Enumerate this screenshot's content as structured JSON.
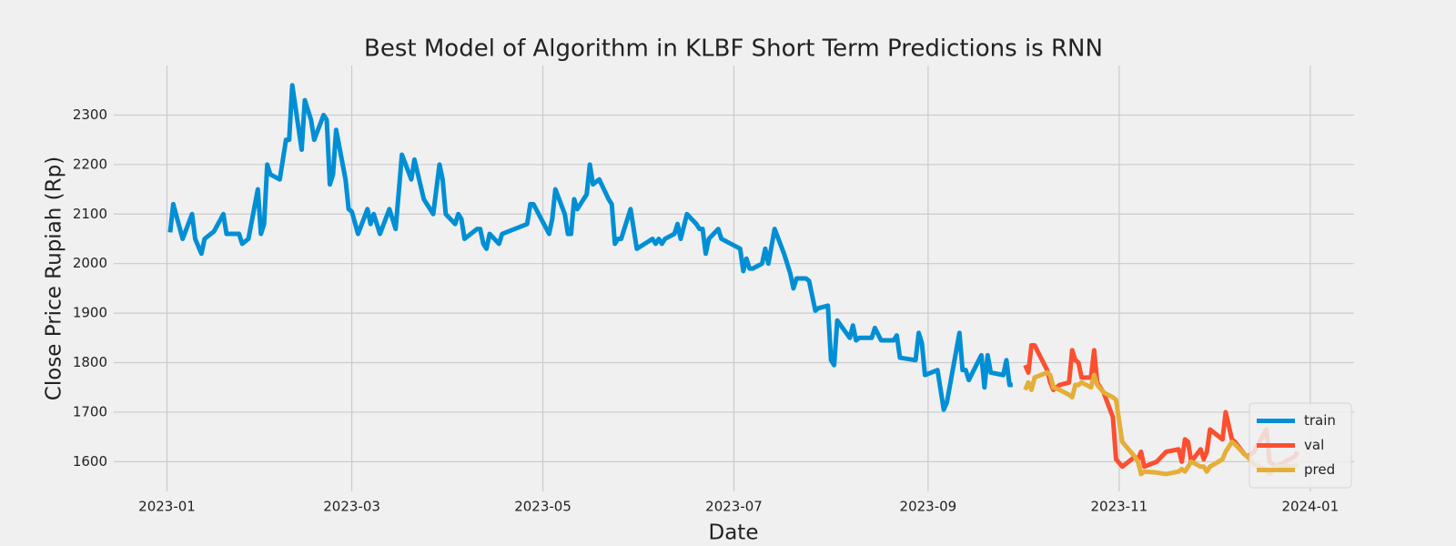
{
  "chart_data": {
    "type": "line",
    "title": "Best Model of Algorithm in KLBF Short Term Predictions is RNN",
    "x_label": "Date",
    "y_label": "Close Price Rupiah (Rp)",
    "xlim": [
      "2022-12-15",
      "2024-01-15"
    ],
    "xticks": [
      {
        "value": "2023-01-01",
        "label": "2023-01"
      },
      {
        "value": "2023-03-01",
        "label": "2023-03"
      },
      {
        "value": "2023-05-01",
        "label": "2023-05"
      },
      {
        "value": "2023-07-01",
        "label": "2023-07"
      },
      {
        "value": "2023-09-01",
        "label": "2023-09"
      },
      {
        "value": "2023-11-01",
        "label": "2023-11"
      },
      {
        "value": "2024-01-01",
        "label": "2024-01"
      }
    ],
    "ylim": [
      1540,
      2400
    ],
    "yticks": [
      1600,
      1700,
      1800,
      1900,
      2000,
      2100,
      2200,
      2300
    ],
    "grid": true,
    "legend": "lower right",
    "series": [
      {
        "name": "train",
        "color": "#008fd5",
        "x": [
          "2023-01-02",
          "2023-01-03",
          "2023-01-06",
          "2023-01-09",
          "2023-01-10",
          "2023-01-12",
          "2023-01-13",
          "2023-01-16",
          "2023-01-19",
          "2023-01-20",
          "2023-01-24",
          "2023-01-25",
          "2023-01-27",
          "2023-01-30",
          "2023-01-31",
          "2023-02-01",
          "2023-02-02",
          "2023-02-03",
          "2023-02-06",
          "2023-02-08",
          "2023-02-09",
          "2023-02-10",
          "2023-02-13",
          "2023-02-14",
          "2023-02-16",
          "2023-02-17",
          "2023-02-20",
          "2023-02-21",
          "2023-02-22",
          "2023-02-23",
          "2023-02-24",
          "2023-02-27",
          "2023-02-28",
          "2023-03-01",
          "2023-03-03",
          "2023-03-06",
          "2023-03-07",
          "2023-03-08",
          "2023-03-10",
          "2023-03-13",
          "2023-03-15",
          "2023-03-17",
          "2023-03-20",
          "2023-03-21",
          "2023-03-24",
          "2023-03-27",
          "2023-03-29",
          "2023-03-30",
          "2023-03-31",
          "2023-04-03",
          "2023-04-04",
          "2023-04-05",
          "2023-04-06",
          "2023-04-10",
          "2023-04-11",
          "2023-04-12",
          "2023-04-13",
          "2023-04-14",
          "2023-04-17",
          "2023-04-18",
          "2023-04-26",
          "2023-04-27",
          "2023-04-28",
          "2023-05-03",
          "2023-05-04",
          "2023-05-05",
          "2023-05-08",
          "2023-05-09",
          "2023-05-10",
          "2023-05-11",
          "2023-05-12",
          "2023-05-15",
          "2023-05-16",
          "2023-05-17",
          "2023-05-19",
          "2023-05-22",
          "2023-05-23",
          "2023-05-24",
          "2023-05-25",
          "2023-05-26",
          "2023-05-29",
          "2023-05-31",
          "2023-06-05",
          "2023-06-06",
          "2023-06-07",
          "2023-06-08",
          "2023-06-09",
          "2023-06-12",
          "2023-06-13",
          "2023-06-14",
          "2023-06-16",
          "2023-06-19",
          "2023-06-20",
          "2023-06-21",
          "2023-06-22",
          "2023-06-23",
          "2023-06-26",
          "2023-06-27",
          "2023-07-03",
          "2023-07-04",
          "2023-07-05",
          "2023-07-06",
          "2023-07-07",
          "2023-07-10",
          "2023-07-11",
          "2023-07-12",
          "2023-07-14",
          "2023-07-17",
          "2023-07-19",
          "2023-07-20",
          "2023-07-21",
          "2023-07-24",
          "2023-07-25",
          "2023-07-27",
          "2023-07-28",
          "2023-07-31",
          "2023-08-01",
          "2023-08-02",
          "2023-08-03",
          "2023-08-07",
          "2023-08-08",
          "2023-08-09",
          "2023-08-10",
          "2023-08-14",
          "2023-08-15",
          "2023-08-17",
          "2023-08-21",
          "2023-08-22",
          "2023-08-23",
          "2023-08-28",
          "2023-08-29",
          "2023-08-30",
          "2023-08-31",
          "2023-09-04",
          "2023-09-05",
          "2023-09-06",
          "2023-09-07",
          "2023-09-11",
          "2023-09-12",
          "2023-09-13",
          "2023-09-14",
          "2023-09-18",
          "2023-09-19",
          "2023-09-20",
          "2023-09-21",
          "2023-09-25",
          "2023-09-26",
          "2023-09-27",
          "2023-09-28"
        ],
        "values": [
          2063,
          2120,
          2050,
          2100,
          2050,
          2020,
          2050,
          2065,
          2100,
          2060,
          2060,
          2040,
          2050,
          2150,
          2060,
          2080,
          2200,
          2180,
          2170,
          2250,
          2250,
          2360,
          2230,
          2330,
          2290,
          2250,
          2300,
          2290,
          2160,
          2180,
          2270,
          2170,
          2110,
          2105,
          2060,
          2110,
          2080,
          2100,
          2060,
          2110,
          2070,
          2220,
          2170,
          2210,
          2130,
          2100,
          2200,
          2170,
          2100,
          2080,
          2100,
          2090,
          2050,
          2070,
          2070,
          2040,
          2030,
          2060,
          2040,
          2060,
          2080,
          2120,
          2120,
          2060,
          2090,
          2150,
          2100,
          2060,
          2060,
          2130,
          2110,
          2140,
          2200,
          2160,
          2170,
          2130,
          2120,
          2040,
          2050,
          2050,
          2110,
          2030,
          2050,
          2040,
          2050,
          2040,
          2050,
          2060,
          2080,
          2050,
          2100,
          2080,
          2070,
          2070,
          2020,
          2050,
          2070,
          2050,
          2030,
          1985,
          2010,
          1990,
          1990,
          2000,
          2030,
          2000,
          2070,
          2020,
          1980,
          1950,
          1970,
          1970,
          1965,
          1905,
          1910,
          1915,
          1805,
          1795,
          1885,
          1850,
          1875,
          1845,
          1850,
          1850,
          1870,
          1845,
          1845,
          1855,
          1810,
          1805,
          1860,
          1840,
          1775,
          1785,
          1745,
          1705,
          1720,
          1860,
          1785,
          1785,
          1765,
          1815,
          1750,
          1815,
          1780,
          1775,
          1805,
          1755,
          1755
        ]
      },
      {
        "name": "val",
        "color": "#fc4f30",
        "x": [
          "2023-10-02",
          "2023-10-03",
          "2023-10-04",
          "2023-10-05",
          "2023-10-09",
          "2023-10-10",
          "2023-10-11",
          "2023-10-13",
          "2023-10-16",
          "2023-10-17",
          "2023-10-18",
          "2023-10-19",
          "2023-10-20",
          "2023-10-23",
          "2023-10-24",
          "2023-10-25",
          "2023-10-27",
          "2023-10-30",
          "2023-10-31",
          "2023-11-02",
          "2023-11-06",
          "2023-11-07",
          "2023-11-08",
          "2023-11-09",
          "2023-11-13",
          "2023-11-16",
          "2023-11-20",
          "2023-11-21",
          "2023-11-22",
          "2023-11-23",
          "2023-11-24",
          "2023-11-27",
          "2023-11-28",
          "2023-11-29",
          "2023-11-30",
          "2023-12-04",
          "2023-12-05",
          "2023-12-07",
          "2023-12-08",
          "2023-12-11",
          "2023-12-12",
          "2023-12-14",
          "2023-12-18",
          "2023-12-19",
          "2023-12-21",
          "2023-12-27",
          "2023-12-28"
        ],
        "values": [
          1795,
          1780,
          1835,
          1835,
          1785,
          1760,
          1745,
          1755,
          1760,
          1825,
          1805,
          1800,
          1770,
          1770,
          1825,
          1760,
          1740,
          1690,
          1605,
          1590,
          1610,
          1605,
          1620,
          1590,
          1600,
          1620,
          1625,
          1600,
          1645,
          1640,
          1600,
          1625,
          1605,
          1620,
          1665,
          1645,
          1700,
          1645,
          1640,
          1615,
          1610,
          1620,
          1665,
          1600,
          1590,
          1610,
          1620
        ]
      },
      {
        "name": "pred",
        "color": "#e5ae38",
        "x": [
          "2023-10-02",
          "2023-10-03",
          "2023-10-04",
          "2023-10-05",
          "2023-10-09",
          "2023-10-10",
          "2023-10-11",
          "2023-10-13",
          "2023-10-16",
          "2023-10-17",
          "2023-10-18",
          "2023-10-19",
          "2023-10-20",
          "2023-10-23",
          "2023-10-24",
          "2023-10-25",
          "2023-10-27",
          "2023-10-30",
          "2023-10-31",
          "2023-11-02",
          "2023-11-06",
          "2023-11-07",
          "2023-11-08",
          "2023-11-09",
          "2023-11-13",
          "2023-11-16",
          "2023-11-20",
          "2023-11-21",
          "2023-11-22",
          "2023-11-23",
          "2023-11-24",
          "2023-11-27",
          "2023-11-28",
          "2023-11-29",
          "2023-11-30",
          "2023-12-04",
          "2023-12-05",
          "2023-12-07",
          "2023-12-08",
          "2023-12-11",
          "2023-12-12",
          "2023-12-14",
          "2023-12-18",
          "2023-12-19",
          "2023-12-21",
          "2023-12-27",
          "2023-12-28"
        ],
        "values": [
          1745,
          1760,
          1745,
          1770,
          1780,
          1775,
          1750,
          1745,
          1735,
          1730,
          1755,
          1755,
          1760,
          1750,
          1775,
          1755,
          1740,
          1730,
          1725,
          1640,
          1610,
          1600,
          1575,
          1580,
          1578,
          1575,
          1580,
          1585,
          1580,
          1590,
          1600,
          1590,
          1590,
          1580,
          1590,
          1605,
          1620,
          1640,
          1635,
          1615,
          1610,
          1595,
          1585,
          1575,
          1590,
          1590,
          1595
        ]
      }
    ]
  }
}
